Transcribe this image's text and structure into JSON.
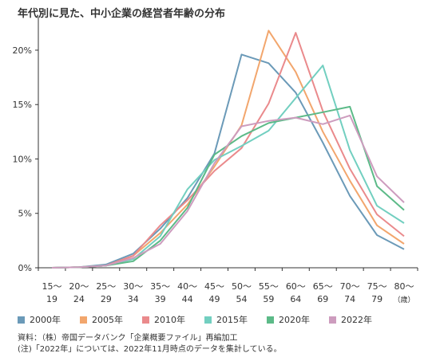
{
  "chart_data": {
    "type": "line",
    "title": "年代別に見た、中小企業の経営者年齢の分布",
    "categories": [
      [
        "15～",
        "19"
      ],
      [
        "20～",
        "24"
      ],
      [
        "25～",
        "29"
      ],
      [
        "30～",
        "34"
      ],
      [
        "35～",
        "39"
      ],
      [
        "40～",
        "44"
      ],
      [
        "45～",
        "49"
      ],
      [
        "50～",
        "54"
      ],
      [
        "55～",
        "59"
      ],
      [
        "60～",
        "64"
      ],
      [
        "65～",
        "69"
      ],
      [
        "70～",
        "74"
      ],
      [
        "75～",
        "79"
      ],
      [
        "80～",
        "（歳）"
      ]
    ],
    "y_ticks": [
      "0%",
      "5%",
      "10%",
      "15%",
      "20%"
    ],
    "ylim": [
      0,
      23
    ],
    "series": [
      {
        "name": "2000年",
        "color": "#6b9ab8",
        "values": [
          0.0,
          0.05,
          0.3,
          1.3,
          3.6,
          6.4,
          10.5,
          19.6,
          18.8,
          16.1,
          11.5,
          6.6,
          3.0,
          1.7
        ]
      },
      {
        "name": "2005年",
        "color": "#f2a66d",
        "values": [
          0.0,
          0.05,
          0.2,
          1.1,
          3.2,
          5.8,
          9.3,
          13.1,
          21.8,
          18.0,
          12.5,
          8.0,
          3.9,
          2.2
        ]
      },
      {
        "name": "2010年",
        "color": "#ea8a8c",
        "values": [
          0.0,
          0.05,
          0.2,
          1.1,
          3.9,
          6.2,
          8.9,
          11.0,
          15.1,
          21.6,
          14.4,
          9.1,
          4.9,
          2.9
        ]
      },
      {
        "name": "2015年",
        "color": "#72cfc0",
        "values": [
          0.0,
          0.05,
          0.2,
          0.8,
          2.9,
          7.2,
          9.9,
          11.2,
          12.6,
          15.6,
          18.6,
          10.8,
          5.7,
          4.1
        ]
      },
      {
        "name": "2020年",
        "color": "#5cba88",
        "values": [
          0.0,
          0.05,
          0.2,
          0.6,
          2.5,
          5.5,
          10.4,
          12.1,
          13.3,
          13.8,
          14.3,
          14.8,
          7.5,
          5.3
        ]
      },
      {
        "name": "2022年",
        "color": "#cd9cbe",
        "values": [
          0.0,
          0.05,
          0.2,
          0.9,
          2.2,
          5.2,
          9.6,
          13.0,
          13.5,
          13.8,
          13.2,
          14.0,
          8.4,
          6.0
        ]
      }
    ],
    "source": [
      "資料：（株）帝国データバンク「企業概要ファイル」再編加工",
      "(注)「2022年」については、2022年11月時点のデータを集計している。"
    ]
  }
}
